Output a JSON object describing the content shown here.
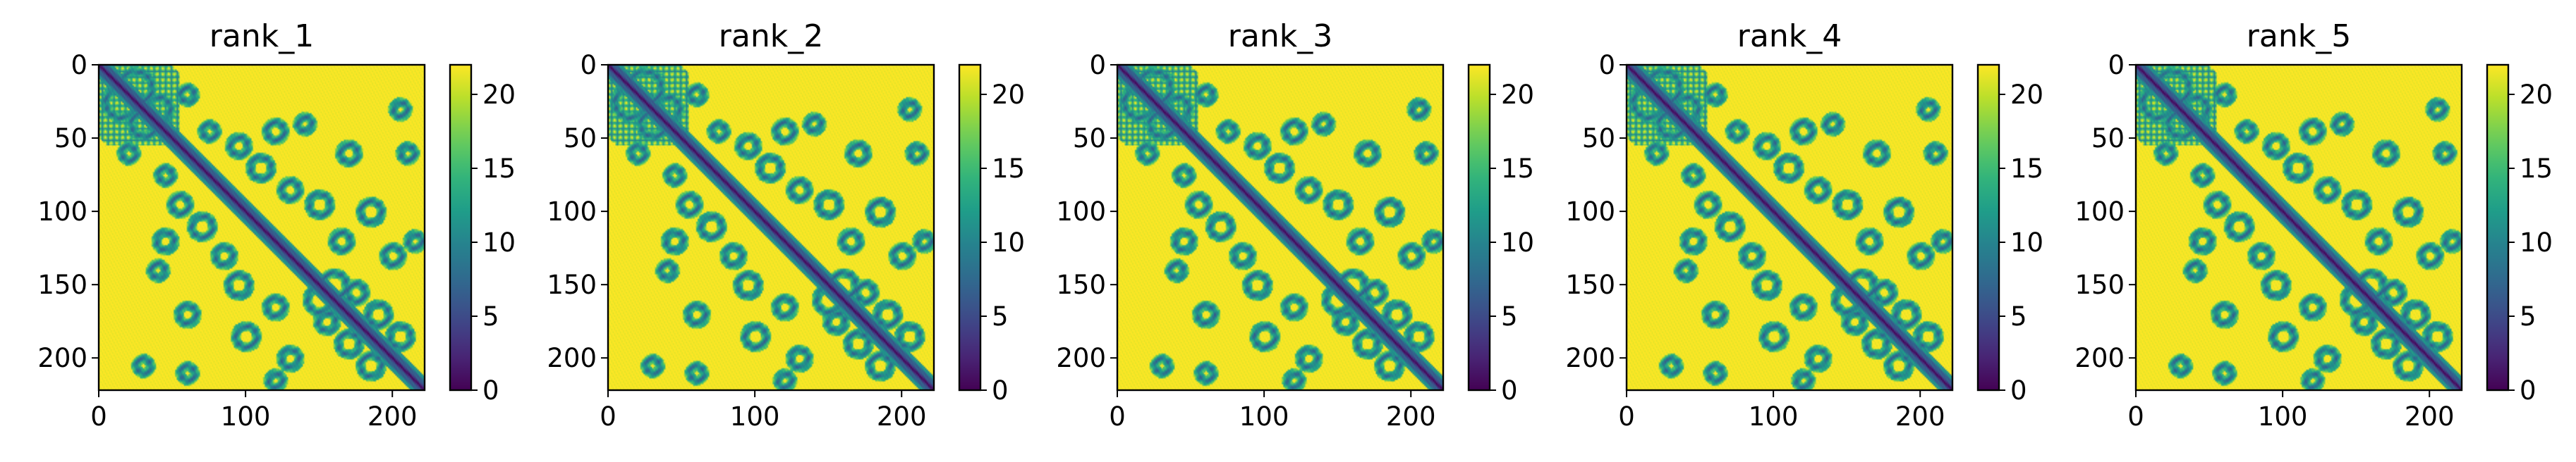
{
  "chart_data": [
    {
      "type": "heatmap",
      "title": "rank_1",
      "x_ticks": [
        "0",
        "100",
        "200"
      ],
      "y_ticks": [
        "0",
        "50",
        "100",
        "150",
        "200"
      ],
      "xlim": [
        0,
        222
      ],
      "ylim": [
        222,
        0
      ],
      "colorbar": {
        "ticks": [
          "0",
          "5",
          "10",
          "15",
          "20"
        ],
        "range": [
          0,
          22
        ],
        "colormap": "viridis"
      }
    },
    {
      "type": "heatmap",
      "title": "rank_2",
      "x_ticks": [
        "0",
        "100",
        "200"
      ],
      "y_ticks": [
        "0",
        "50",
        "100",
        "150",
        "200"
      ],
      "xlim": [
        0,
        222
      ],
      "ylim": [
        222,
        0
      ],
      "colorbar": {
        "ticks": [
          "0",
          "5",
          "10",
          "15",
          "20"
        ],
        "range": [
          0,
          22
        ],
        "colormap": "viridis"
      }
    },
    {
      "type": "heatmap",
      "title": "rank_3",
      "x_ticks": [
        "0",
        "100",
        "200"
      ],
      "y_ticks": [
        "0",
        "50",
        "100",
        "150",
        "200"
      ],
      "xlim": [
        0,
        222
      ],
      "ylim": [
        222,
        0
      ],
      "colorbar": {
        "ticks": [
          "0",
          "5",
          "10",
          "15",
          "20"
        ],
        "range": [
          0,
          22
        ],
        "colormap": "viridis"
      }
    },
    {
      "type": "heatmap",
      "title": "rank_4",
      "x_ticks": [
        "0",
        "100",
        "200"
      ],
      "y_ticks": [
        "0",
        "50",
        "100",
        "150",
        "200"
      ],
      "xlim": [
        0,
        222
      ],
      "ylim": [
        222,
        0
      ],
      "colorbar": {
        "ticks": [
          "0",
          "5",
          "10",
          "15",
          "20"
        ],
        "range": [
          0,
          22
        ],
        "colormap": "viridis"
      }
    },
    {
      "type": "heatmap",
      "title": "rank_5",
      "x_ticks": [
        "0",
        "100",
        "200"
      ],
      "y_ticks": [
        "0",
        "50",
        "100",
        "150",
        "200"
      ],
      "xlim": [
        0,
        222
      ],
      "ylim": [
        222,
        0
      ],
      "colorbar": {
        "ticks": [
          "0",
          "5",
          "10",
          "15",
          "20"
        ],
        "range": [
          0,
          22
        ],
        "colormap": "viridis"
      }
    }
  ],
  "colors": {
    "background": "#ffffff",
    "axis": "#000000"
  }
}
